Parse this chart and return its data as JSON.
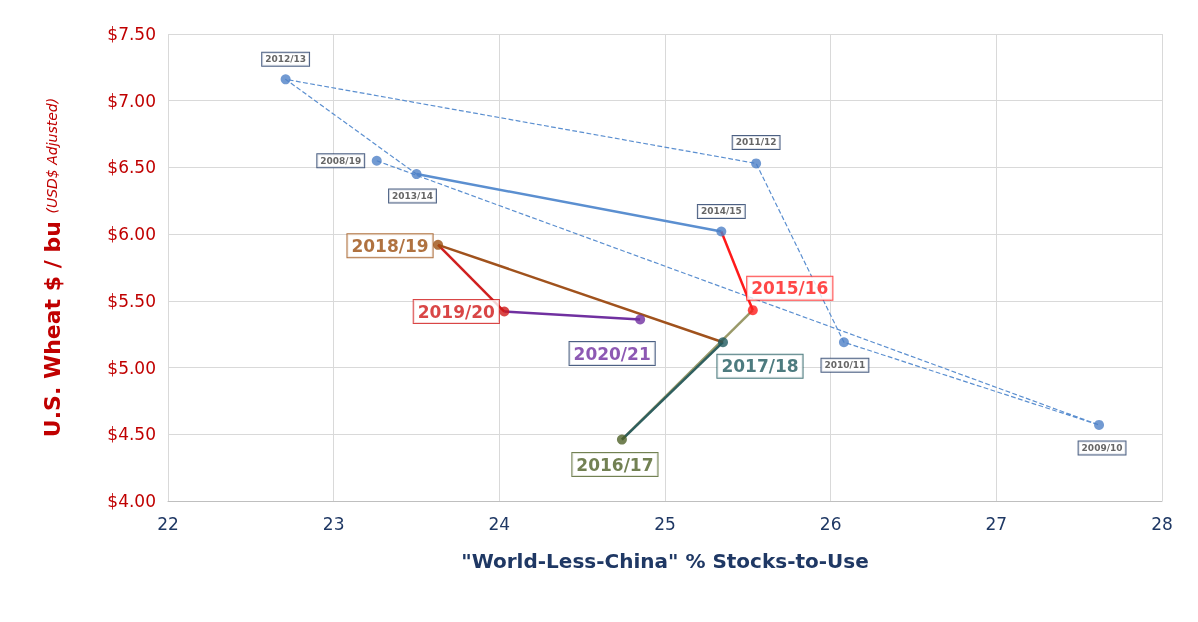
{
  "chart_data": {
    "type": "line",
    "xlabel": "\"World-Less-China\" % Stocks-to-Use",
    "ylabel": "U.S. Wheat $ / bu (USD$ Adjusted)",
    "xlim": [
      22,
      28
    ],
    "xticks": [
      22,
      23,
      24,
      25,
      26,
      27,
      28
    ],
    "ylim": [
      4,
      7.5
    ],
    "yticks": [
      {
        "value": 4,
        "label": "$4.00"
      },
      {
        "value": 4.5,
        "label": "$4.50"
      },
      {
        "value": 5,
        "label": "$5.00"
      },
      {
        "value": 5.5,
        "label": "$5.50"
      },
      {
        "value": 6,
        "label": "$6.00"
      },
      {
        "value": 6.5,
        "label": "$6.50"
      },
      {
        "value": 7,
        "label": "$7.00"
      },
      {
        "value": 7.5,
        "label": "$7.50"
      }
    ],
    "grid": true,
    "marker": "circle",
    "series": [
      {
        "color": "#5b8fd0",
        "line_style": "dashed",
        "marker": "none",
        "x": [
          23.26,
          27.62,
          26.08,
          25.55,
          22.71,
          23.5
        ],
        "values": [
          6.55,
          4.57,
          5.19,
          6.53,
          7.16,
          6.45
        ]
      },
      {
        "color": "#5b8fd0",
        "line_style": "solid",
        "marker": "none",
        "x": [
          23.5,
          25.34
        ],
        "values": [
          6.45,
          6.02
        ]
      },
      {
        "color": "#ff1a1a",
        "line_style": "solid",
        "marker": "none",
        "x": [
          25.34,
          25.53
        ],
        "values": [
          6.02,
          5.43
        ]
      },
      {
        "color": "#9a9a6a",
        "line_style": "solid",
        "marker": "none",
        "x": [
          25.53,
          24.74
        ],
        "values": [
          5.43,
          4.46
        ]
      },
      {
        "color": "#2f5f5f",
        "line_style": "solid",
        "marker": "none",
        "x": [
          24.74,
          25.35
        ],
        "values": [
          4.46,
          5.19
        ]
      },
      {
        "color": "#a0521d",
        "line_style": "solid",
        "marker": "none",
        "x": [
          25.35,
          23.63
        ],
        "values": [
          5.19,
          5.92
        ]
      },
      {
        "color": "#d02020",
        "line_style": "solid",
        "marker": "none",
        "x": [
          23.63,
          24.03
        ],
        "values": [
          5.92,
          5.42
        ]
      },
      {
        "color": "#7030a0",
        "line_style": "solid",
        "marker": "none",
        "x": [
          24.03,
          24.85
        ],
        "values": [
          5.42,
          5.36
        ]
      },
      {
        "type": "scatter",
        "x": [
          23.26,
          27.62,
          26.08,
          25.55,
          22.71,
          23.5,
          25.34,
          25.53,
          24.74,
          25.35,
          23.63,
          24.03,
          24.85
        ],
        "values": [
          6.55,
          4.57,
          5.19,
          6.53,
          7.16,
          6.45,
          6.02,
          5.43,
          4.46,
          5.19,
          5.92,
          5.42,
          5.36
        ],
        "colors": [
          "#4f81c7",
          "#4f81c7",
          "#4f81c7",
          "#4f81c7",
          "#4f81c7",
          "#4f81c7",
          "#4f81c7",
          "#ff1a1a",
          "#4f6228",
          "#215a5f",
          "#9c4f10",
          "#d01818",
          "#7030a0"
        ]
      }
    ],
    "annotations": [
      {
        "text": "2008/19",
        "x": 23.26,
        "y": 6.55
      },
      {
        "text": "2009/10",
        "x": 27.62,
        "y": 4.57
      },
      {
        "text": "2010/11",
        "x": 26.08,
        "y": 5.19
      },
      {
        "text": "2011/12",
        "x": 25.55,
        "y": 6.53
      },
      {
        "text": "2012/13",
        "x": 22.71,
        "y": 7.16
      },
      {
        "text": "2013/14",
        "x": 23.5,
        "y": 6.45
      },
      {
        "text": "2014/15",
        "x": 25.34,
        "y": 6.02
      },
      {
        "text": "2015/16",
        "x": 25.53,
        "y": 5.43
      },
      {
        "text": "2016/17",
        "x": 24.74,
        "y": 4.46
      },
      {
        "text": "2017/18",
        "x": 25.35,
        "y": 5.19
      },
      {
        "text": "2018/19",
        "x": 23.63,
        "y": 5.92
      },
      {
        "text": "2019/20",
        "x": 24.03,
        "y": 5.42
      },
      {
        "text": "2020/21",
        "x": 24.85,
        "y": 5.36
      }
    ]
  }
}
